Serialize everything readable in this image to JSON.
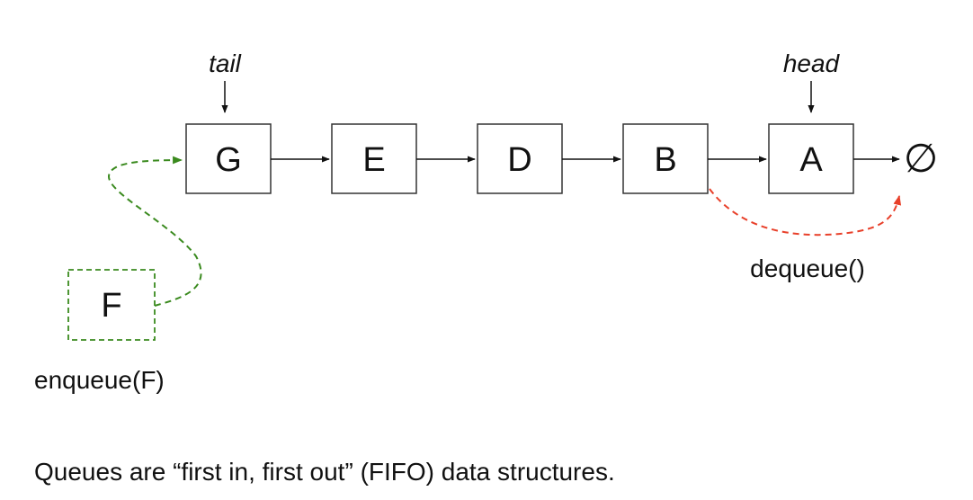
{
  "nodes": [
    "G",
    "E",
    "D",
    "B",
    "A"
  ],
  "null_symbol": "∅",
  "pointers": {
    "tail": "tail",
    "head": "head"
  },
  "enqueue": {
    "node": "F",
    "label": "enqueue(F)",
    "color": "#3a8a1e"
  },
  "dequeue": {
    "label": "dequeue()",
    "color": "#e8402a"
  },
  "caption": "Queues are “first in, first out” (FIFO) data structures."
}
